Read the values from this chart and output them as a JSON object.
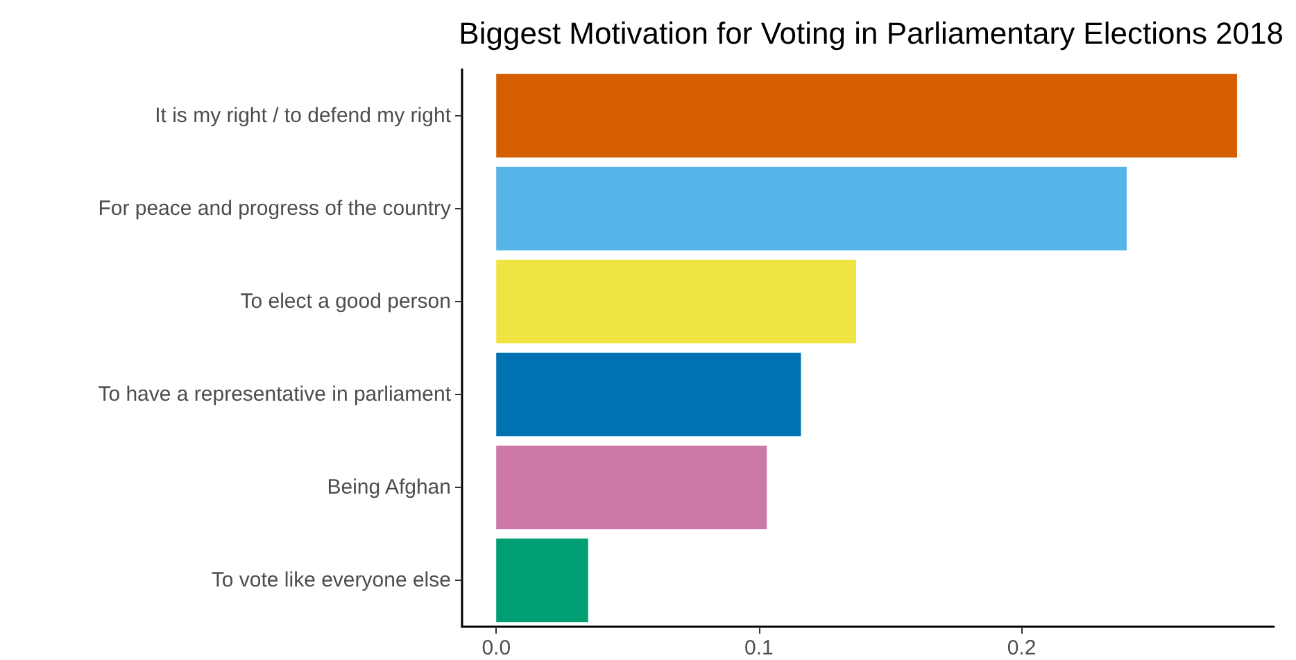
{
  "chart_data": {
    "type": "bar",
    "orientation": "horizontal",
    "title": "Biggest Motivation for Voting in Parliamentary Elections 2018",
    "categories": [
      "It is my right / to defend my right",
      "For peace and progress of the country",
      "To elect a good person",
      "To have a representative in parliament",
      "Being Afghan",
      "To vote like everyone else"
    ],
    "values": [
      0.282,
      0.24,
      0.137,
      0.116,
      0.103,
      0.035
    ],
    "colors": [
      "#d55e00",
      "#56b4e9",
      "#f0e442",
      "#0072b2",
      "#cc79a7",
      "#009e73"
    ],
    "xlim": [
      -0.013,
      0.296
    ],
    "xticks": [
      {
        "value": 0,
        "label": "0.0"
      },
      {
        "value": 0.1,
        "label": "0.1"
      },
      {
        "value": 0.2,
        "label": "0.2"
      }
    ],
    "grid": false
  }
}
